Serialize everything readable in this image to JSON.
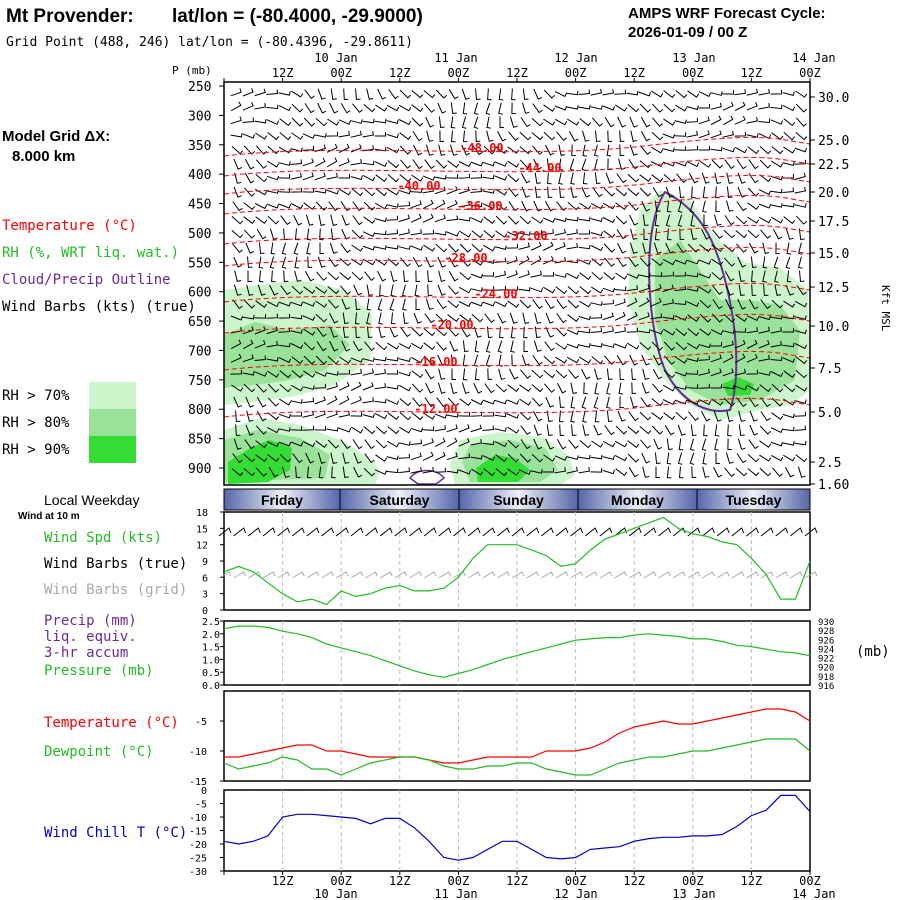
{
  "header": {
    "station": "Mt Provender:",
    "latlon": "lat/lon = (-80.4000, -29.9000)",
    "grid_point": "Grid Point (488, 246) lat/lon = (-80.4396, -29.8611)",
    "cycle_title": "AMPS WRF Forecast Cycle:",
    "cycle_value": "2026-01-09 / 00  Z"
  },
  "left_panel": {
    "model_grid_label": "Model Grid ΔX:",
    "model_grid_value": "8.000 km",
    "legend_temperature": "Temperature (°C)",
    "legend_rh": "RH (%, WRT liq. wat.)",
    "legend_cloud": "Cloud/Precip Outline",
    "legend_wind": "Wind Barbs (kts) (true)",
    "rh_70": "RH > 70%",
    "rh_80": "RH > 80%",
    "rh_90": "RH > 90%",
    "local_weekday": "Local Weekday",
    "wind_at_10m": "Wind at 10 m"
  },
  "colors": {
    "temperature": "#ff0000",
    "rh_legend": "#22bb22",
    "cloud": "#6a2a9a",
    "rh70": "#ccf5cc",
    "rh80": "#9ae29a",
    "rh90": "#33dd33",
    "pressure_line": "#22bb22",
    "windchill": "#0000cc",
    "grid_barb": "#aaaaaa"
  },
  "time_axis": {
    "top_hour_labels": [
      "12Z",
      "00Z",
      "12Z",
      "00Z",
      "12Z",
      "00Z",
      "12Z",
      "00Z",
      "12Z",
      "00Z"
    ],
    "top_date_labels": [
      "10 Jan",
      "11 Jan",
      "12 Jan",
      "13 Jan",
      "14 Jan"
    ],
    "bottom_hour_labels": [
      "12Z",
      "00Z",
      "12Z",
      "00Z",
      "12Z",
      "00Z",
      "12Z",
      "00Z",
      "12Z",
      "00Z"
    ],
    "bottom_date_labels": [
      "10 Jan",
      "11 Jan",
      "12 Jan",
      "13 Jan",
      "14 Jan"
    ],
    "weekdays": [
      "Friday",
      "Saturday",
      "Sunday",
      "Monday",
      "Tuesday"
    ]
  },
  "cross_section": {
    "ylabel": "P (mb)",
    "pressure_ticks": [
      "250",
      "300",
      "350",
      "400",
      "450",
      "500",
      "550",
      "600",
      "650",
      "700",
      "750",
      "800",
      "850",
      "900"
    ],
    "height_ticks": [
      "30.0",
      "25.0",
      "22.5",
      "20.0",
      "17.5",
      "15.0",
      "12.5",
      "10.0",
      "7.5",
      "5.0",
      "2.5",
      "1.60"
    ],
    "height_label": "Kft MSL",
    "isotherm_labels": [
      "-48.00",
      "-44.00",
      "-40.00",
      "-36.00",
      "-32.00",
      "-28.00",
      "-24.00",
      "-20.00",
      "-16.00",
      "-12.00"
    ]
  },
  "meteogram_labels": {
    "wind_speed": "Wind Spd (kts)",
    "wind_barbs_true": "Wind Barbs (true)",
    "wind_barbs_grid": "Wind Barbs (grid)",
    "precip": "Precip (mm)",
    "liq_equiv": "liq. equiv.",
    "accum": "3-hr accum",
    "pressure": "Pressure (mb)",
    "pressure_unit": "(mb)",
    "temperature": "Temperature (°C)",
    "dewpoint": "Dewpoint (°C)",
    "windchill": "Wind Chill T (°C)"
  },
  "chart_data": [
    {
      "type": "line",
      "title": "Wind Spd (kts)",
      "x_hours": [
        0,
        3,
        6,
        9,
        12,
        15,
        18,
        21,
        24,
        27,
        30,
        33,
        36,
        39,
        42,
        45,
        48,
        51,
        54,
        57,
        60,
        63,
        66,
        69,
        72,
        75,
        78,
        81,
        84,
        87,
        90,
        93,
        96,
        99,
        102,
        105,
        108,
        111,
        114,
        117,
        120
      ],
      "series": [
        {
          "name": "Wind Spd (kts)",
          "values": [
            7,
            8,
            7,
            5,
            3,
            1.5,
            2,
            1,
            3.5,
            2.5,
            3,
            4,
            4.5,
            3.5,
            3.5,
            4,
            6,
            9.5,
            12,
            12,
            12,
            11,
            10,
            8,
            8.5,
            11,
            13,
            14,
            15,
            16,
            17,
            15,
            14,
            13.5,
            12.5,
            12,
            9.5,
            6.5,
            2,
            2,
            9
          ]
        }
      ],
      "ylim": [
        0,
        18
      ],
      "yticks": [
        "18",
        "15",
        "12",
        "9",
        "6",
        "3",
        "0"
      ]
    },
    {
      "type": "line",
      "title": "Pressure (mb)",
      "series": [
        {
          "name": "Pressure (mb)",
          "values": [
            2.2,
            2.3,
            2.3,
            2.25,
            2.1,
            2.0,
            1.85,
            1.6,
            1.45,
            1.3,
            1.15,
            0.95,
            0.75,
            0.55,
            0.4,
            0.3,
            0.45,
            0.6,
            0.8,
            1.0,
            1.15,
            1.3,
            1.45,
            1.6,
            1.75,
            1.8,
            1.85,
            1.85,
            1.95,
            2.0,
            1.95,
            1.9,
            1.8,
            1.8,
            1.7,
            1.55,
            1.5,
            1.4,
            1.3,
            1.25,
            1.15
          ]
        }
      ],
      "ylim": [
        0,
        2.5
      ],
      "yticks": [
        "2.5",
        "2.0",
        "1.5",
        "1.0",
        "0.5",
        "0.0"
      ],
      "right_ticks": [
        "930",
        "928",
        "926",
        "924",
        "922",
        "920",
        "918",
        "916"
      ]
    },
    {
      "type": "line",
      "title": "Temperature / Dewpoint (°C)",
      "series": [
        {
          "name": "Temperature (°C)",
          "values": [
            -11,
            -11,
            -10.5,
            -10,
            -9.5,
            -9,
            -9,
            -10,
            -10,
            -10.5,
            -11,
            -11,
            -11,
            -11,
            -11.5,
            -12,
            -12,
            -11.5,
            -11,
            -11,
            -11,
            -11,
            -10,
            -10,
            -10,
            -9.5,
            -8.5,
            -7,
            -6,
            -5.5,
            -5,
            -5.5,
            -5.5,
            -5,
            -4.5,
            -4,
            -3.5,
            -3,
            -3,
            -3.5,
            -5
          ]
        },
        {
          "name": "Dewpoint (°C)",
          "values": [
            -12,
            -13,
            -12.5,
            -12,
            -11,
            -11.5,
            -13,
            -13,
            -14,
            -13,
            -12,
            -11.5,
            -11,
            -11,
            -11.5,
            -12.5,
            -13,
            -13,
            -12.5,
            -12.5,
            -12,
            -12,
            -13,
            -13.5,
            -14,
            -14,
            -13,
            -12,
            -11.5,
            -11,
            -11,
            -10.5,
            -10,
            -10,
            -9.5,
            -9,
            -8.5,
            -8,
            -8,
            -8,
            -10
          ]
        }
      ],
      "ylim": [
        -15,
        0
      ],
      "yticks": [
        "-5",
        "-10",
        "-15"
      ]
    },
    {
      "type": "line",
      "title": "Wind Chill T (°C)",
      "series": [
        {
          "name": "Wind Chill T (°C)",
          "values": [
            -19,
            -20,
            -19,
            -17,
            -10,
            -9,
            -9,
            -9.5,
            -10,
            -10.5,
            -12.5,
            -10.5,
            -10.5,
            -14,
            -19,
            -25,
            -26,
            -25,
            -22,
            -19,
            -19,
            -22,
            -25,
            -25.5,
            -25,
            -22,
            -21.5,
            -21,
            -19,
            -18,
            -17.5,
            -17.5,
            -17,
            -17,
            -16.5,
            -13.5,
            -9.5,
            -7.5,
            -2,
            -2,
            -8
          ]
        }
      ],
      "ylim": [
        -30,
        0
      ],
      "yticks": [
        "-5",
        "-10",
        "-15",
        "-20",
        "-25",
        "-30"
      ],
      "top_tick": "0"
    }
  ]
}
